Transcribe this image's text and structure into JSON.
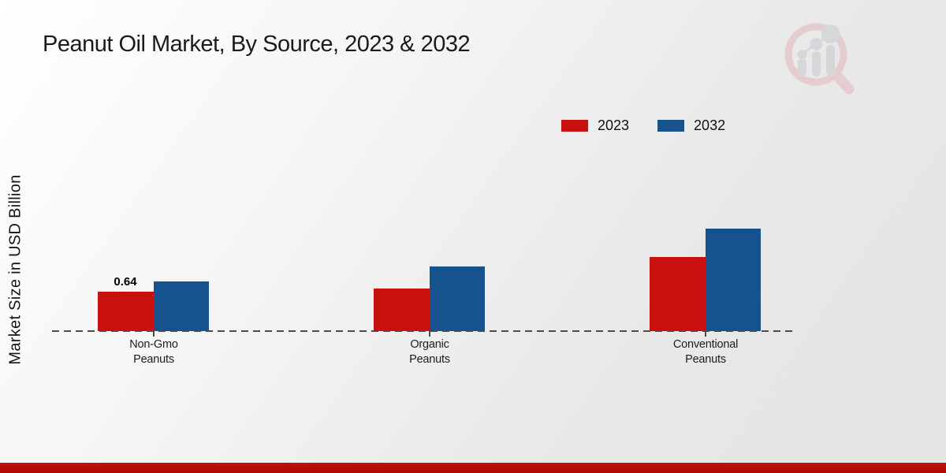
{
  "page": {
    "title": "Peanut Oil Market, By Source, 2023 & 2032",
    "ylabel": "Market Size in USD Billion",
    "background_top": "#ffffff",
    "background_bottom": "#e4e4e4",
    "footer_bar_color": "#b30d05",
    "watermark_icon": "magnifier-bar-chart-logo"
  },
  "legend": {
    "items": [
      {
        "label": "2023",
        "color": "#c8100e"
      },
      {
        "label": "2032",
        "color": "#15528e"
      }
    ]
  },
  "chart_data": {
    "type": "bar",
    "title": "Peanut Oil Market, By Source, 2023 & 2032",
    "xlabel": "",
    "ylabel": "Market Size in USD Billion",
    "categories": [
      "Non-Gmo Peanuts",
      "Organic Peanuts",
      "Conventional Peanuts"
    ],
    "tick_labels": [
      "Non-Gmo\nPeanuts",
      "Organic\nPeanuts",
      "Conventional\nPeanuts"
    ],
    "series": [
      {
        "name": "2023",
        "color": "#c8100e",
        "values": [
          0.64,
          0.69,
          1.2
        ]
      },
      {
        "name": "2032",
        "color": "#15528e",
        "values": [
          0.81,
          1.05,
          1.66
        ]
      }
    ],
    "value_labels": [
      {
        "series_index": 0,
        "category_index": 0,
        "text": "0.64"
      }
    ],
    "ylim": [
      0,
      2
    ],
    "grid": false,
    "legend_position": "top-right",
    "baseline_style": "dashed"
  }
}
